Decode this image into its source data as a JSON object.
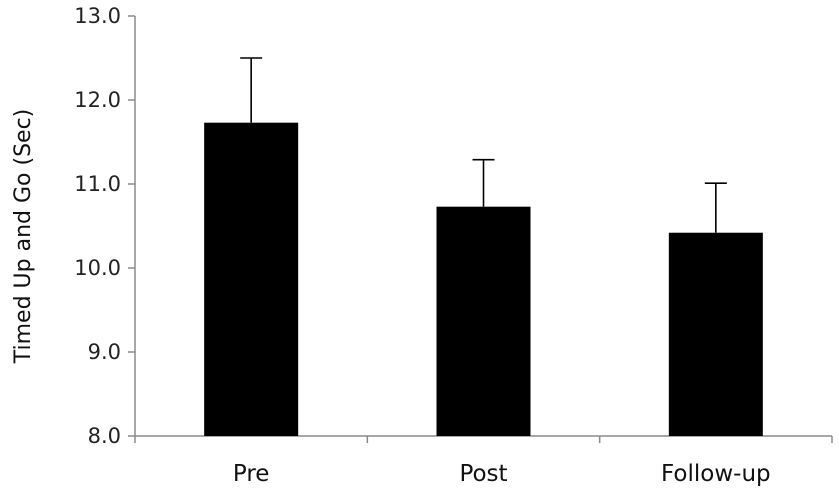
{
  "chart_data": {
    "type": "bar",
    "categories": [
      "Pre",
      "Post",
      "Follow-up"
    ],
    "values": [
      11.73,
      10.73,
      10.42
    ],
    "error_upper": [
      12.5,
      11.29,
      11.01
    ],
    "title": "",
    "xlabel": "",
    "ylabel": "Timed Up and Go (Sec)",
    "ylim": [
      8.0,
      13.0
    ],
    "yticks": [
      "8.0",
      "9.0",
      "10.0",
      "11.0",
      "12.0",
      "13.0"
    ],
    "bar_color": "#000000",
    "grid": false,
    "legend": "none"
  }
}
